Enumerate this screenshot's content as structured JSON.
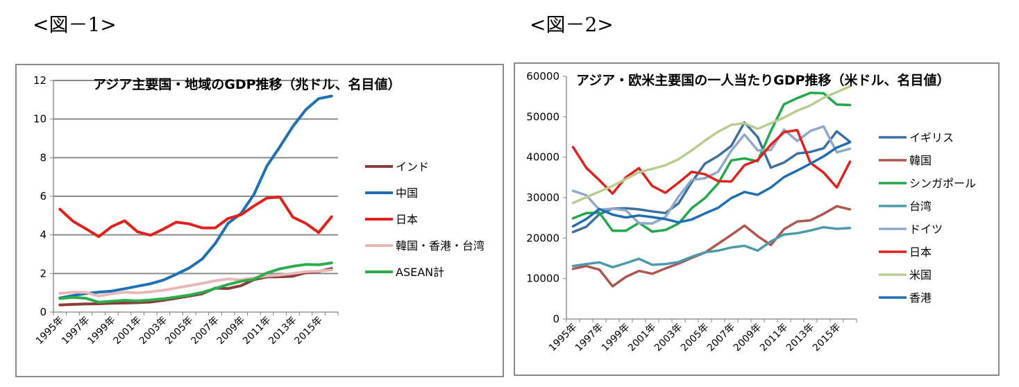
{
  "figure_labels": [
    "<図－1>",
    "<図－2>"
  ],
  "chart_data": [
    {
      "type": "line",
      "title": "アジア主要国・地域のGDP推移（兆ドル、名目値）",
      "x": [
        1995,
        1996,
        1997,
        1998,
        1999,
        2000,
        2001,
        2002,
        2003,
        2004,
        2005,
        2006,
        2007,
        2008,
        2009,
        2010,
        2011,
        2012,
        2013,
        2014,
        2015,
        2016
      ],
      "x_tick_labels": [
        "1995年",
        "1997年",
        "1999年",
        "2001年",
        "2003年",
        "2005年",
        "2007年",
        "2009年",
        "2011年",
        "2013年",
        "2015年"
      ],
      "ylim": [
        0,
        12
      ],
      "y_ticks": [
        0,
        2,
        4,
        6,
        8,
        10,
        12
      ],
      "grid": true,
      "legend_position": "right",
      "series": [
        {
          "name": "インド",
          "color": "#8B3A3A",
          "values": [
            0.37,
            0.4,
            0.42,
            0.43,
            0.46,
            0.47,
            0.49,
            0.52,
            0.61,
            0.72,
            0.83,
            0.95,
            1.24,
            1.22,
            1.37,
            1.68,
            1.82,
            1.83,
            1.86,
            2.04,
            2.1,
            2.26
          ]
        },
        {
          "name": "中国",
          "color": "#1F6FB5",
          "values": [
            0.73,
            0.86,
            0.96,
            1.03,
            1.09,
            1.21,
            1.34,
            1.47,
            1.66,
            1.96,
            2.29,
            2.75,
            3.55,
            4.6,
            5.11,
            6.1,
            7.57,
            8.56,
            9.61,
            10.48,
            11.06,
            11.19
          ]
        },
        {
          "name": "日本",
          "color": "#E0201B",
          "values": [
            5.33,
            4.71,
            4.32,
            3.91,
            4.43,
            4.73,
            4.16,
            3.98,
            4.3,
            4.66,
            4.57,
            4.36,
            4.36,
            4.85,
            5.04,
            5.5,
            5.91,
            5.96,
            4.92,
            4.6,
            4.12,
            4.94
          ]
        },
        {
          "name": "韓国・香港・台湾",
          "color": "#E6B8B7",
          "values": [
            0.97,
            1.03,
            1.02,
            0.83,
            0.95,
            1.03,
            0.99,
            1.05,
            1.13,
            1.25,
            1.37,
            1.49,
            1.62,
            1.72,
            1.67,
            1.78,
            1.88,
            1.92,
            2.0,
            2.09,
            2.12,
            2.18
          ]
        },
        {
          "name": "ASEAN計",
          "color": "#2BAE4A",
          "values": [
            0.7,
            0.76,
            0.72,
            0.51,
            0.56,
            0.61,
            0.58,
            0.63,
            0.69,
            0.78,
            0.88,
            1.02,
            1.22,
            1.43,
            1.6,
            1.7,
            2.03,
            2.24,
            2.37,
            2.47,
            2.45,
            2.55
          ]
        }
      ]
    },
    {
      "type": "line",
      "title": "アジア・欧米主要国の一人当たりGDP推移（米ドル、名目値）",
      "x": [
        1995,
        1996,
        1997,
        1998,
        1999,
        2000,
        2001,
        2002,
        2003,
        2004,
        2005,
        2006,
        2007,
        2008,
        2009,
        2010,
        2011,
        2012,
        2013,
        2014,
        2015,
        2016
      ],
      "x_tick_labels": [
        "1995年",
        "1997年",
        "1999年",
        "2001年",
        "2003年",
        "2005年",
        "2007年",
        "2009年",
        "2011年",
        "2013年",
        "2015年"
      ],
      "ylim": [
        0,
        60000
      ],
      "y_ticks": [
        0,
        10000,
        20000,
        30000,
        40000,
        50000,
        60000
      ],
      "grid": false,
      "legend_position": "right",
      "series": [
        {
          "name": "イギリス",
          "color": "#3C6E9F",
          "values": [
            21500,
            22800,
            25900,
            27300,
            27400,
            27100,
            26600,
            26200,
            28600,
            33800,
            38400,
            40300,
            42800,
            48600,
            45000,
            37400,
            38700,
            40900,
            41300,
            42200,
            46400,
            43800
          ]
        },
        {
          "name": "韓国",
          "color": "#B0544E",
          "values": [
            12400,
            13100,
            12200,
            8100,
            10400,
            11900,
            11200,
            12500,
            13700,
            15100,
            16400,
            18600,
            20800,
            23100,
            20500,
            18300,
            22200,
            24100,
            24400,
            26000,
            27900,
            27100
          ]
        },
        {
          "name": "シンガポール",
          "color": "#21A84A",
          "values": [
            24900,
            26200,
            26300,
            21800,
            21800,
            23800,
            21600,
            22000,
            23600,
            27400,
            29900,
            33500,
            39200,
            39700,
            39000,
            46500,
            53100,
            54600,
            55900,
            55800,
            53000,
            52900
          ]
        },
        {
          "name": "台湾",
          "color": "#4A9BAA",
          "values": [
            13100,
            13600,
            14000,
            12800,
            13800,
            14900,
            13400,
            13600,
            14100,
            15400,
            16500,
            16900,
            17700,
            18100,
            16900,
            19200,
            20900,
            21200,
            21900,
            22700,
            22300,
            22500
          ]
        },
        {
          "name": "ドイツ",
          "color": "#8FA8C9",
          "values": [
            31700,
            30600,
            27000,
            27300,
            26900,
            23700,
            23600,
            25200,
            30300,
            34400,
            34800,
            36400,
            41600,
            45600,
            41700,
            41800,
            46800,
            44000,
            46500,
            47600,
            41200,
            42100
          ]
        },
        {
          "name": "日本",
          "color": "#E0201B",
          "values": [
            42500,
            37400,
            34300,
            31000,
            35000,
            37300,
            32900,
            31200,
            33700,
            36400,
            35800,
            34100,
            34000,
            38000,
            39300,
            43100,
            46200,
            46700,
            38600,
            36200,
            32500,
            38900
          ]
        },
        {
          "name": "米国",
          "color": "#B7CC8E",
          "values": [
            28700,
            30100,
            31500,
            32900,
            34600,
            36300,
            37100,
            38000,
            39500,
            41700,
            44100,
            46300,
            48000,
            48400,
            47000,
            48400,
            49800,
            51500,
            52800,
            54700,
            56100,
            57500
          ]
        },
        {
          "name": "香港",
          "color": "#1D6DB0",
          "values": [
            22900,
            24700,
            27200,
            25800,
            25100,
            25600,
            25200,
            24700,
            23900,
            24600,
            26100,
            27500,
            29900,
            31400,
            30700,
            32500,
            35100,
            36700,
            38400,
            40200,
            42400,
            43700
          ]
        }
      ]
    }
  ]
}
